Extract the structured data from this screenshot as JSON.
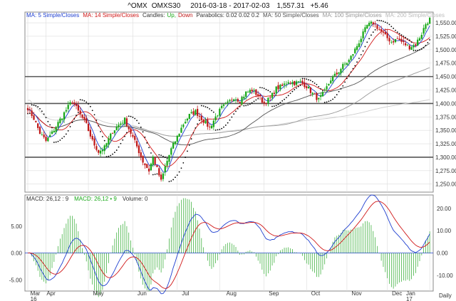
{
  "header": {
    "symbol": "^OMX",
    "name": "OMXS30",
    "range": "2016-03-18 - 2017-02-03",
    "last": "1,557.31",
    "change": "+5.46"
  },
  "legend": {
    "ma5": "MA: 5 Simple/Closes",
    "ma14": "MA: 14 Simple/Closes",
    "candles_prefix": "Candles:",
    "candles_up": "Up,",
    "candles_down": "Down",
    "parabolics": "Parabolics: 0.02 0.02 0.2",
    "ma50": "MA: 50 Simple/Closes",
    "ma100": "MA: 100 Simple/Closes",
    "ma200": "MA: 200 Simple/Closes"
  },
  "lower_legend": {
    "macd1": "MACD: 26,12 : 9",
    "macd2": "MACD: 26,12 • 9",
    "volume": "Volume: 0"
  },
  "interval": "Daily",
  "colors": {
    "up": "#18a818",
    "down": "#c01818",
    "ma5": "#1f3fd0",
    "ma14": "#d01818",
    "ma50": "#555555",
    "ma100": "#999999",
    "ma200": "#cccccc",
    "psar": "#000000",
    "grid": "#dcdcdc",
    "hist": "#2aa82a",
    "macd": "#d01818",
    "signal": "#1f3fd0"
  },
  "chart_data": [
    {
      "type": "candlestick",
      "y_ticks": [
        "1,550.00",
        "1,525.00",
        "1,500.00",
        "1,475.00",
        "1,450.00",
        "1,425.00",
        "1,400.00",
        "1,375.00",
        "1,350.00",
        "1,325.00",
        "1,300.00",
        "1,275.00",
        "1,250.00"
      ],
      "ylim": [
        1235,
        1570
      ],
      "horizontal_lines": [
        1450,
        1400,
        1300
      ],
      "x_labels": [
        "Mar",
        "Apr",
        "May",
        "Jun",
        "Jul",
        "Aug",
        "Sep",
        "Oct",
        "Nov",
        "Dec",
        "Jan"
      ],
      "x_sublabels": {
        "Mar": "16",
        "Jan": "17"
      },
      "path_waypoints": [
        [
          0,
          1392
        ],
        [
          3,
          1372
        ],
        [
          6,
          1345
        ],
        [
          9,
          1330
        ],
        [
          12,
          1345
        ],
        [
          16,
          1370
        ],
        [
          19,
          1388
        ],
        [
          22,
          1405
        ],
        [
          25,
          1385
        ],
        [
          29,
          1360
        ],
        [
          32,
          1330
        ],
        [
          35,
          1310
        ],
        [
          38,
          1318
        ],
        [
          42,
          1348
        ],
        [
          45,
          1360
        ],
        [
          48,
          1370
        ],
        [
          51,
          1345
        ],
        [
          54,
          1320
        ],
        [
          57,
          1292
        ],
        [
          60,
          1275
        ],
        [
          62,
          1300
        ],
        [
          64,
          1278
        ],
        [
          66,
          1255
        ],
        [
          68,
          1282
        ],
        [
          71,
          1315
        ],
        [
          74,
          1338
        ],
        [
          77,
          1362
        ],
        [
          80,
          1378
        ],
        [
          83,
          1385
        ],
        [
          86,
          1372
        ],
        [
          90,
          1355
        ],
        [
          93,
          1375
        ],
        [
          96,
          1392
        ],
        [
          99,
          1400
        ],
        [
          102,
          1412
        ],
        [
          105,
          1405
        ],
        [
          108,
          1420
        ],
        [
          111,
          1425
        ],
        [
          114,
          1415
        ],
        [
          117,
          1400
        ],
        [
          120,
          1410
        ],
        [
          123,
          1428
        ],
        [
          126,
          1432
        ],
        [
          129,
          1442
        ],
        [
          132,
          1438
        ],
        [
          135,
          1440
        ],
        [
          138,
          1432
        ],
        [
          141,
          1418
        ],
        [
          144,
          1407
        ],
        [
          147,
          1422
        ],
        [
          150,
          1445
        ],
        [
          153,
          1455
        ],
        [
          156,
          1470
        ],
        [
          159,
          1480
        ],
        [
          162,
          1500
        ],
        [
          165,
          1522
        ],
        [
          168,
          1545
        ],
        [
          171,
          1550
        ],
        [
          174,
          1538
        ],
        [
          177,
          1525
        ],
        [
          180,
          1515
        ],
        [
          183,
          1520
        ],
        [
          186,
          1512
        ],
        [
          189,
          1505
        ],
        [
          192,
          1510
        ],
        [
          195,
          1530
        ],
        [
          197,
          1548
        ],
        [
          199,
          1557
        ]
      ]
    },
    {
      "type": "macd",
      "y_ticks": [
        "20.00",
        "10.00",
        "0.00",
        "-10.00"
      ],
      "left_ticks": [
        "5.00",
        "0.00",
        "-5.00"
      ],
      "ylim": [
        -17,
        26
      ]
    }
  ]
}
